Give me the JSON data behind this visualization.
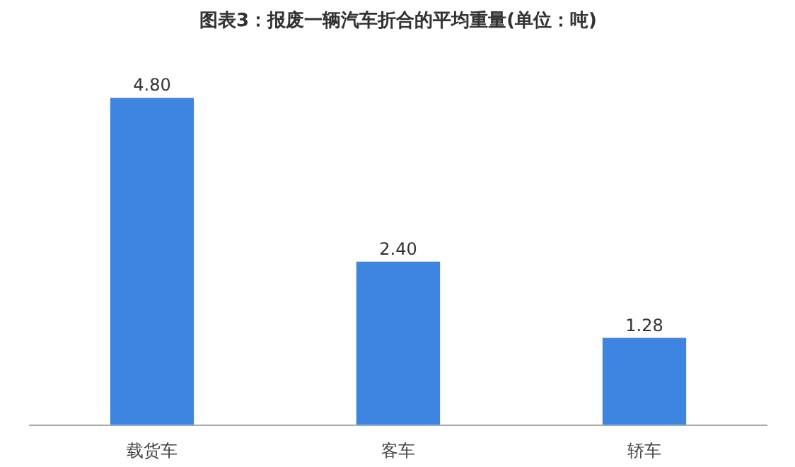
{
  "chart_data": {
    "type": "bar",
    "title": "图表3：报废一辆汽车折合的平均重量(单位：吨)",
    "categories": [
      "载货车",
      "客车",
      "轿车"
    ],
    "values": [
      4.8,
      2.4,
      1.28
    ],
    "value_labels": [
      "4.80",
      "2.40",
      "1.28"
    ],
    "color": "#3d85e0",
    "tick_labels": "x"
  }
}
